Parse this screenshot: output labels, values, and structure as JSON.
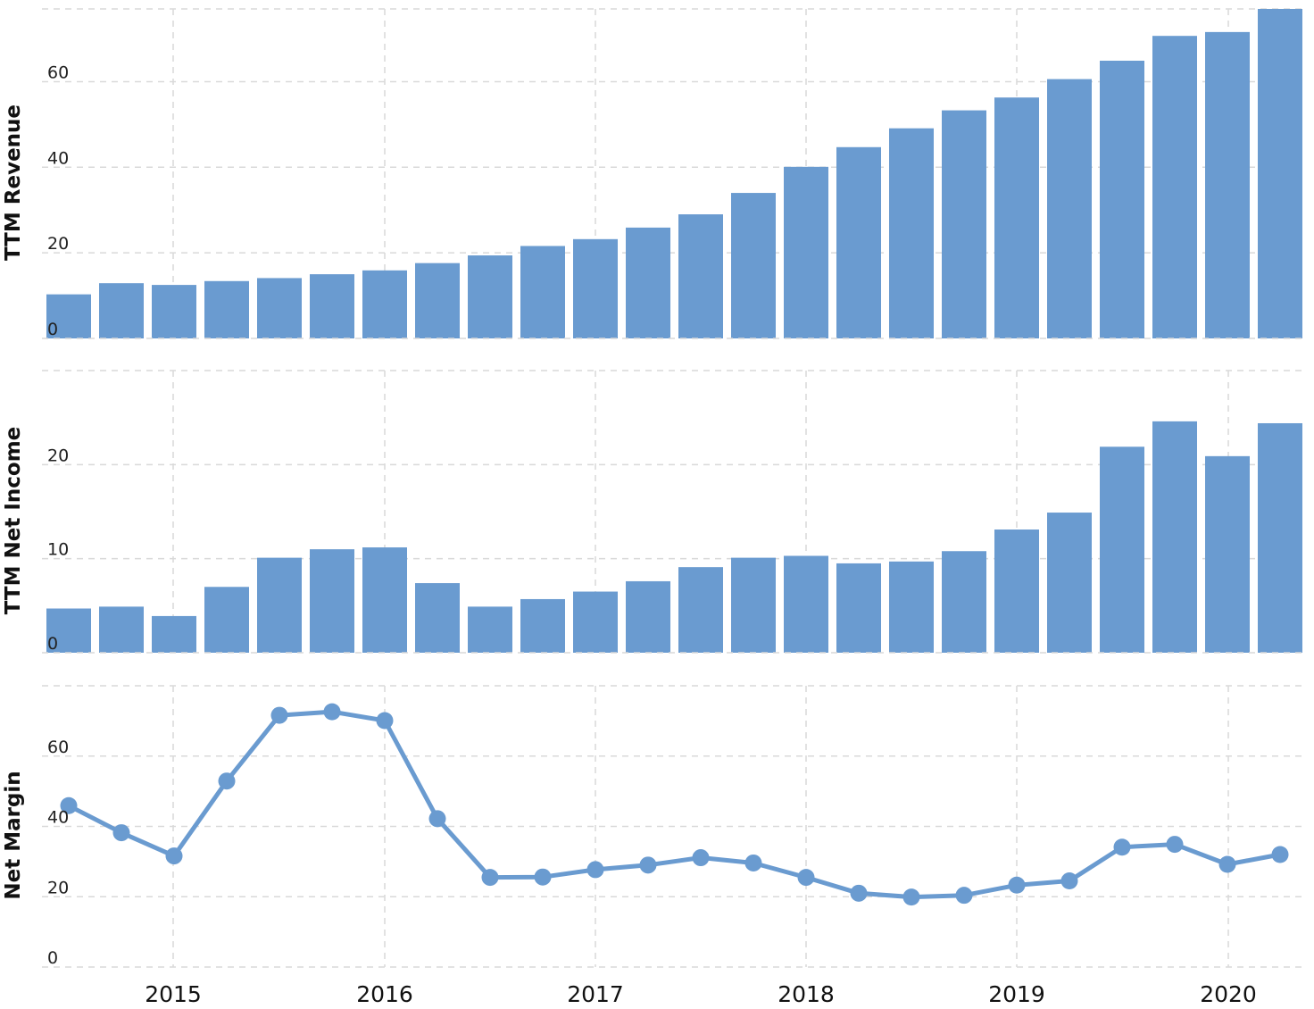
{
  "chart_data": [
    {
      "type": "bar",
      "ylabel": "TTM Revenue",
      "ylim": [
        0,
        77
      ],
      "yticks": [
        0,
        20,
        40,
        60
      ],
      "color": "#6a9bd0",
      "values": [
        10.3,
        12.9,
        12.5,
        13.4,
        14.1,
        15.0,
        15.9,
        17.6,
        19.4,
        21.6,
        23.2,
        25.9,
        29.0,
        34.0,
        40.1,
        44.7,
        49.1,
        53.3,
        56.3,
        60.6,
        64.9,
        70.7,
        71.6,
        77.0
      ]
    },
    {
      "type": "bar",
      "ylabel": "TTM Net Income",
      "ylim": [
        0,
        30
      ],
      "yticks": [
        0,
        10,
        20
      ],
      "color": "#6a9bd0",
      "values": [
        4.7,
        4.9,
        3.9,
        7.0,
        10.1,
        11.0,
        11.2,
        7.4,
        4.9,
        5.7,
        6.5,
        7.6,
        9.1,
        10.1,
        10.3,
        9.5,
        9.7,
        10.8,
        13.1,
        14.9,
        21.9,
        24.6,
        20.9,
        24.4
      ]
    },
    {
      "type": "line",
      "ylabel": "Net Margin",
      "ylim": [
        0,
        80
      ],
      "yticks": [
        0,
        20,
        40,
        60
      ],
      "color": "#6a9bd0",
      "values": [
        45.9,
        38.2,
        31.6,
        52.9,
        71.6,
        72.6,
        70.1,
        42.2,
        25.5,
        25.6,
        27.7,
        29.0,
        31.1,
        29.6,
        25.5,
        21.0,
        19.9,
        20.4,
        23.3,
        24.5,
        34.1,
        34.9,
        29.2,
        32.0
      ]
    }
  ],
  "x": {
    "labels": [
      "2015",
      "2016",
      "2017",
      "2018",
      "2019",
      "2020"
    ],
    "first_period": "Q3 2014",
    "periods_per_year": 4
  }
}
